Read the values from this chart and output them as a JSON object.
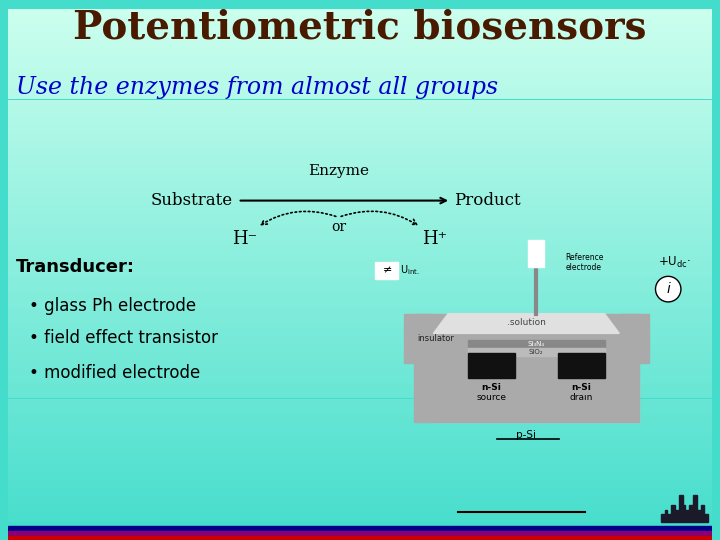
{
  "title": "Potentiometric biosensors",
  "title_color": "#4a1a00",
  "subtitle": "Use the enzymes from almost all groups",
  "subtitle_color": "#0000cc",
  "bg_color_top": "#ccffee",
  "bg_color_bottom": "#44ddcc",
  "bullet_header": "Transducer:",
  "bullets": [
    "glass Ph electrode",
    "field effect transistor",
    "modified electrode"
  ],
  "reaction_substrate": "Substrate",
  "reaction_product": "Product",
  "reaction_enzyme": "Enzyme",
  "reaction_or": "or",
  "reaction_hminus": "H⁻",
  "reaction_hplus": "H⁺"
}
